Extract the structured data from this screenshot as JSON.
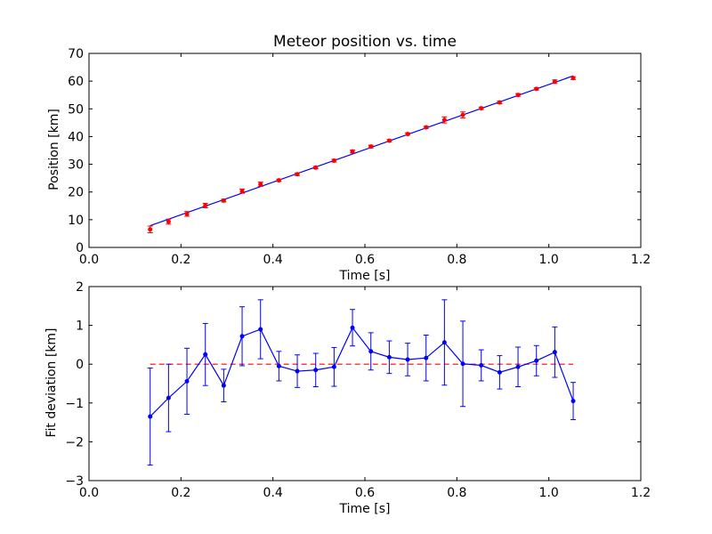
{
  "chart_data": [
    {
      "type": "scatter",
      "title": "Meteor position vs. time",
      "xlabel": "Time [s]",
      "ylabel": "Position [km]",
      "xlim": [
        0.0,
        1.2
      ],
      "ylim": [
        0,
        70
      ],
      "xticks": [
        "0.0",
        "0.2",
        "0.4",
        "0.6",
        "0.8",
        "1.0",
        "1.2"
      ],
      "yticks": [
        "0",
        "10",
        "20",
        "30",
        "40",
        "50",
        "60",
        "70"
      ],
      "grid": false,
      "series": [
        {
          "kind": "errorbar-points",
          "color": "#ff0000",
          "x": [
            0.133,
            0.173,
            0.213,
            0.253,
            0.293,
            0.333,
            0.373,
            0.413,
            0.453,
            0.493,
            0.533,
            0.573,
            0.613,
            0.653,
            0.693,
            0.733,
            0.773,
            0.813,
            0.853,
            0.893,
            0.933,
            0.973,
            1.013,
            1.053
          ],
          "y": [
            6.5,
            9.3,
            12.1,
            15.1,
            16.9,
            20.3,
            22.8,
            24.2,
            26.4,
            28.8,
            31.3,
            34.6,
            36.4,
            38.5,
            40.9,
            43.3,
            46.0,
            47.8,
            50.2,
            52.3,
            55.0,
            57.2,
            59.8,
            61.1
          ],
          "yerr": [
            1.2,
            0.9,
            0.85,
            0.8,
            0.5,
            0.75,
            0.75,
            0.4,
            0.45,
            0.45,
            0.5,
            0.5,
            0.5,
            0.4,
            0.4,
            0.4,
            1.1,
            1.1,
            0.4,
            0.45,
            0.5,
            0.4,
            0.65,
            0.5
          ]
        },
        {
          "kind": "fit-line",
          "color": "#0000ff",
          "x": [
            0.133,
            1.053
          ],
          "y": [
            7.85,
            61.9
          ]
        }
      ]
    },
    {
      "type": "line",
      "title": "",
      "xlabel": "Time [s]",
      "ylabel": "Fit deviation [km]",
      "xlim": [
        0.0,
        1.2
      ],
      "ylim": [
        -3,
        2
      ],
      "xticks": [
        "0.0",
        "0.2",
        "0.4",
        "0.6",
        "0.8",
        "1.0",
        "1.2"
      ],
      "yticks": [
        "−3",
        "−2",
        "−1",
        "0",
        "1",
        "2"
      ],
      "grid": false,
      "series": [
        {
          "kind": "errorbar-line",
          "color": "#0000ff",
          "x": [
            0.133,
            0.173,
            0.213,
            0.253,
            0.293,
            0.333,
            0.373,
            0.413,
            0.453,
            0.493,
            0.533,
            0.573,
            0.613,
            0.653,
            0.693,
            0.733,
            0.773,
            0.813,
            0.853,
            0.893,
            0.933,
            0.973,
            1.013,
            1.053
          ],
          "y": [
            -1.35,
            -0.87,
            -0.44,
            0.25,
            -0.55,
            0.72,
            0.9,
            -0.05,
            -0.18,
            -0.15,
            -0.07,
            0.94,
            0.33,
            0.18,
            0.12,
            0.16,
            0.56,
            0.01,
            -0.03,
            -0.21,
            -0.07,
            0.09,
            0.31,
            -0.95
          ],
          "yerr": [
            1.25,
            0.87,
            0.85,
            0.8,
            0.42,
            0.76,
            0.76,
            0.38,
            0.42,
            0.43,
            0.5,
            0.47,
            0.48,
            0.42,
            0.42,
            0.59,
            1.1,
            1.1,
            0.4,
            0.43,
            0.51,
            0.39,
            0.65,
            0.48
          ]
        },
        {
          "kind": "zero-line",
          "color": "#ff0000",
          "dashed": true,
          "x": [
            0.133,
            1.053
          ],
          "y": [
            0,
            0
          ]
        }
      ]
    }
  ]
}
